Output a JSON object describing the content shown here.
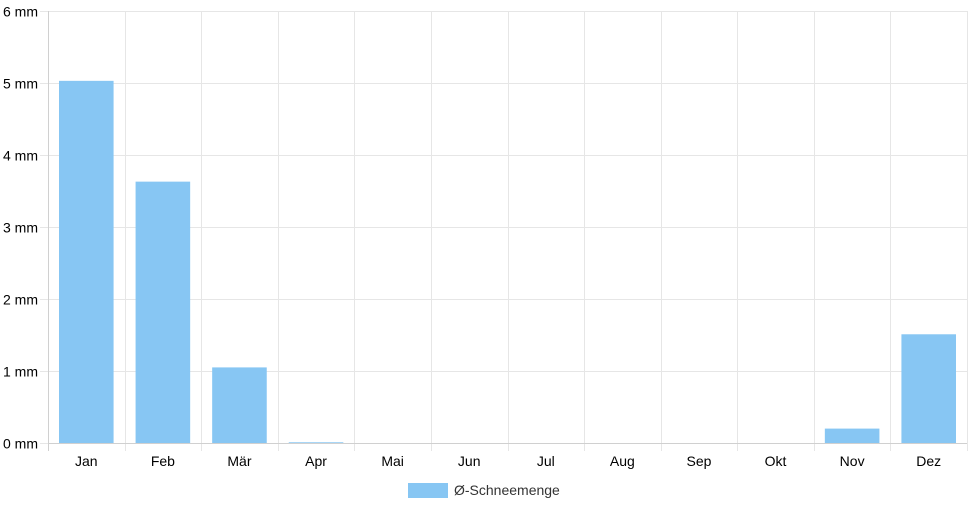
{
  "chart_data": {
    "type": "bar",
    "categories": [
      "Jan",
      "Feb",
      "Mär",
      "Apr",
      "Mai",
      "Jun",
      "Jul",
      "Aug",
      "Sep",
      "Okt",
      "Nov",
      "Dez"
    ],
    "series": [
      {
        "name": "Ø-Schneemenge",
        "values": [
          5.03,
          3.63,
          1.05,
          0.01,
          0,
          0,
          0,
          0,
          0,
          0,
          0.2,
          1.51
        ],
        "color": "#87c6f3"
      }
    ],
    "y_ticks": [
      "0 mm",
      "1 mm",
      "2 mm",
      "3 mm",
      "4 mm",
      "5 mm",
      "6 mm"
    ],
    "ylim": [
      0,
      6
    ],
    "grid": true,
    "legend_position": "bottom-center",
    "title": "",
    "xlabel": "",
    "ylabel": ""
  }
}
